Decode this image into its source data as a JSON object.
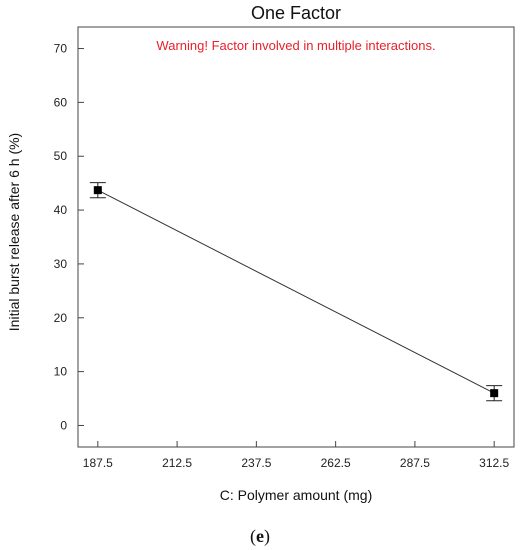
{
  "chart_data": {
    "type": "line",
    "title": "One Factor",
    "warning": "Warning! Factor involved in multiple interactions.",
    "warning_color": "#e8202a",
    "xlabel": "C: Polymer amount (mg)",
    "ylabel": "Initial burst release after 6 h (%)",
    "x_ticks": [
      "187.5",
      "212.5",
      "237.5",
      "262.5",
      "287.5",
      "312.5"
    ],
    "y_ticks": [
      "0",
      "10",
      "20",
      "30",
      "40",
      "50",
      "60",
      "70"
    ],
    "xlim": [
      181.25,
      318.75
    ],
    "ylim": [
      -4,
      74
    ],
    "grid": false,
    "series": [
      {
        "points": [
          {
            "x": 187.5,
            "y": 43.7,
            "err_low": 42.3,
            "err_high": 45.1
          },
          {
            "x": 312.5,
            "y": 6.0,
            "err_low": 4.6,
            "err_high": 7.4
          }
        ]
      }
    ],
    "caption_open": "(",
    "caption_letter": "e",
    "caption_close": ")"
  }
}
